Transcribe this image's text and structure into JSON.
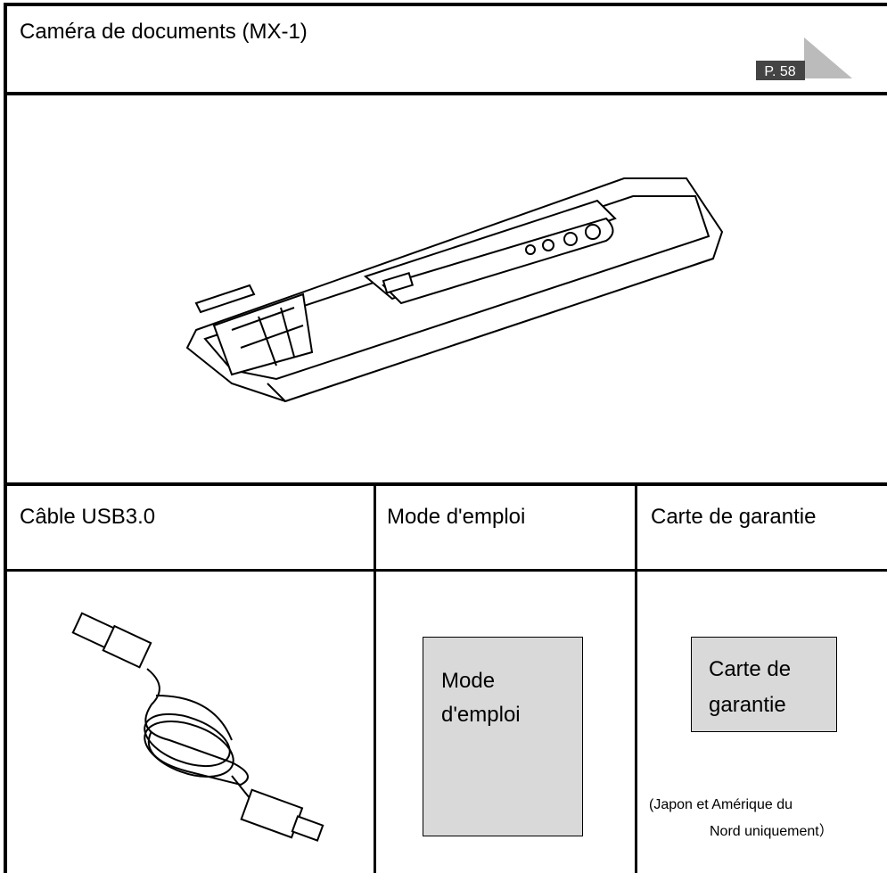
{
  "header": {
    "title": "Caméra de documents (MX-1)",
    "page_ref": "P. 58"
  },
  "items": [
    {
      "label": "Câble USB3.0"
    },
    {
      "label": "Mode d'emploi",
      "box_lines": [
        "Mode",
        "d'emploi"
      ]
    },
    {
      "label": "Carte de garantie",
      "box_lines": [
        "Carte de",
        "garantie"
      ],
      "note_lines": [
        "(Japon et Amérique du",
        "Nord uniquement）"
      ]
    }
  ]
}
